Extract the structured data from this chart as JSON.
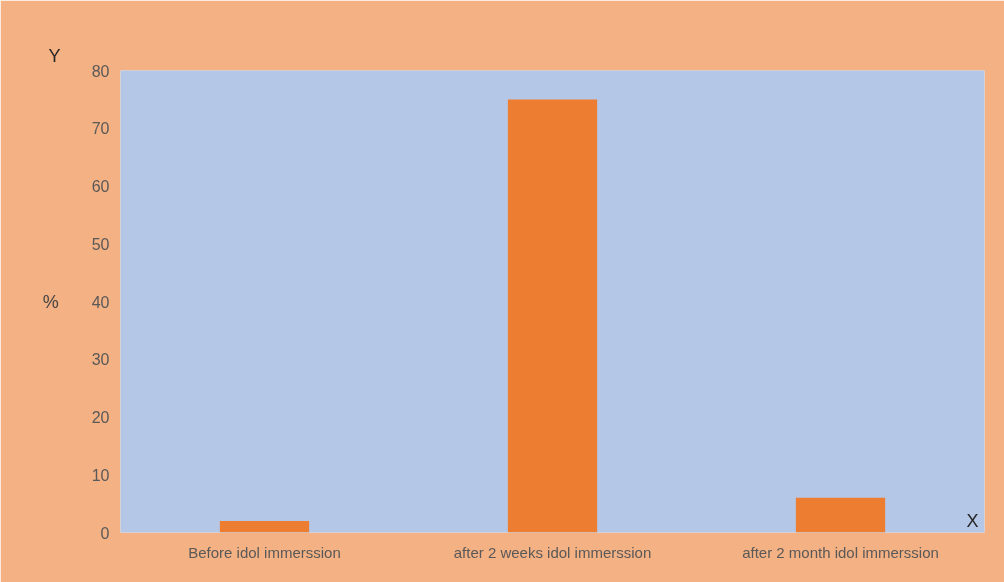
{
  "chart_data": {
    "type": "bar",
    "categories": [
      "Before idol immerssion",
      "after 2 weeks idol immerssion",
      "after 2 month idol immerssion"
    ],
    "values": [
      2,
      75,
      6
    ],
    "color": "#ed7d31",
    "xlabel": "X",
    "ylabel": "%",
    "annotations": [
      "Y"
    ],
    "ylim": [
      0,
      80
    ],
    "yticks": [
      0,
      10,
      20,
      30,
      40,
      50,
      60,
      70,
      80
    ],
    "grid": false
  }
}
